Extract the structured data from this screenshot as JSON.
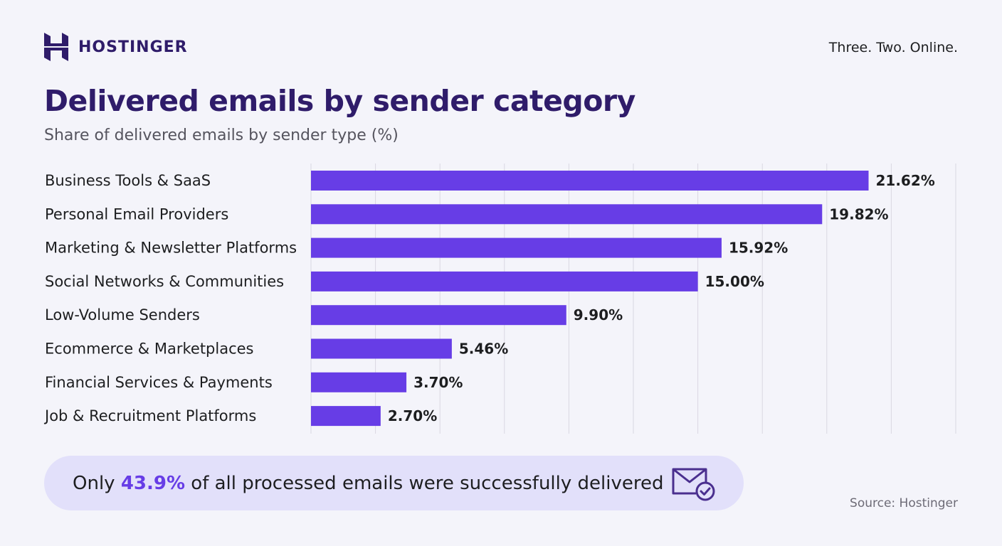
{
  "brand": {
    "name": "HOSTINGER",
    "tagline": "Three. Two. Online."
  },
  "header": {
    "title": "Delivered emails by sender category",
    "subtitle": "Share of delivered emails by sender type (%)"
  },
  "chart_data": {
    "type": "bar",
    "orientation": "horizontal",
    "title": "Delivered emails by sender category",
    "subtitle": "Share of delivered emails by sender type (%)",
    "categories": [
      "Business Tools & SaaS",
      "Personal Email Providers",
      "Marketing & Newsletter Platforms",
      "Social Networks & Communities",
      "Low-Volume Senders",
      "Ecommerce & Marketplaces",
      "Financial Services & Payments",
      "Job & Recruitment Platforms"
    ],
    "values": [
      21.62,
      19.82,
      15.92,
      15.0,
      9.9,
      5.46,
      3.7,
      2.7
    ],
    "labels": [
      "21.62%",
      "19.82%",
      "15.92%",
      "15.00%",
      "9.90%",
      "5.46%",
      "3.70%",
      "2.70%"
    ],
    "xlim": [
      0,
      25
    ],
    "grid_step": 2.5,
    "grid": true,
    "bar_color": "#673de6"
  },
  "banner": {
    "prefix": "Only ",
    "highlight": "43.9%",
    "suffix": " of all processed emails were successfully delivered",
    "icon": "mail-check-icon"
  },
  "source": "Source: Hostinger"
}
